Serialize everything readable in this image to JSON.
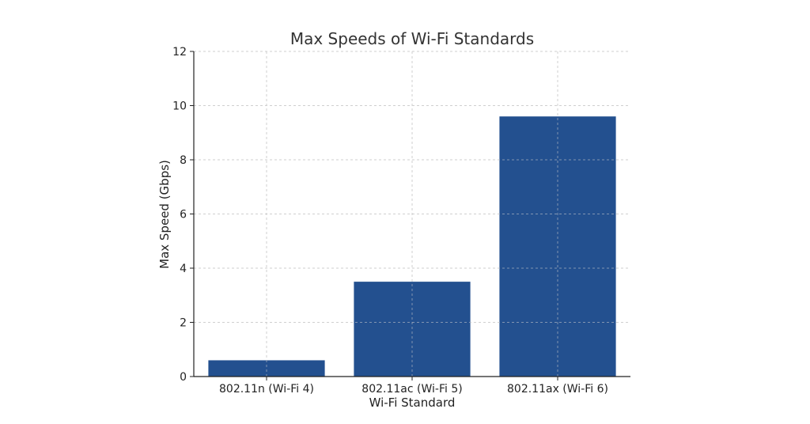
{
  "chart_data": {
    "type": "bar",
    "title": "Max Speeds of Wi-Fi Standards",
    "xlabel": "Wi-Fi Standard",
    "ylabel": "Max Speed (Gbps)",
    "categories": [
      "802.11n (Wi-Fi 4)",
      "802.11ac (Wi-Fi 5)",
      "802.11ax (Wi-Fi 6)"
    ],
    "values": [
      0.6,
      3.5,
      9.6
    ],
    "ylim": [
      0,
      12
    ],
    "yticks": [
      0,
      2,
      4,
      6,
      8,
      10,
      12
    ],
    "grid": true,
    "bar_color": "#23508f"
  }
}
